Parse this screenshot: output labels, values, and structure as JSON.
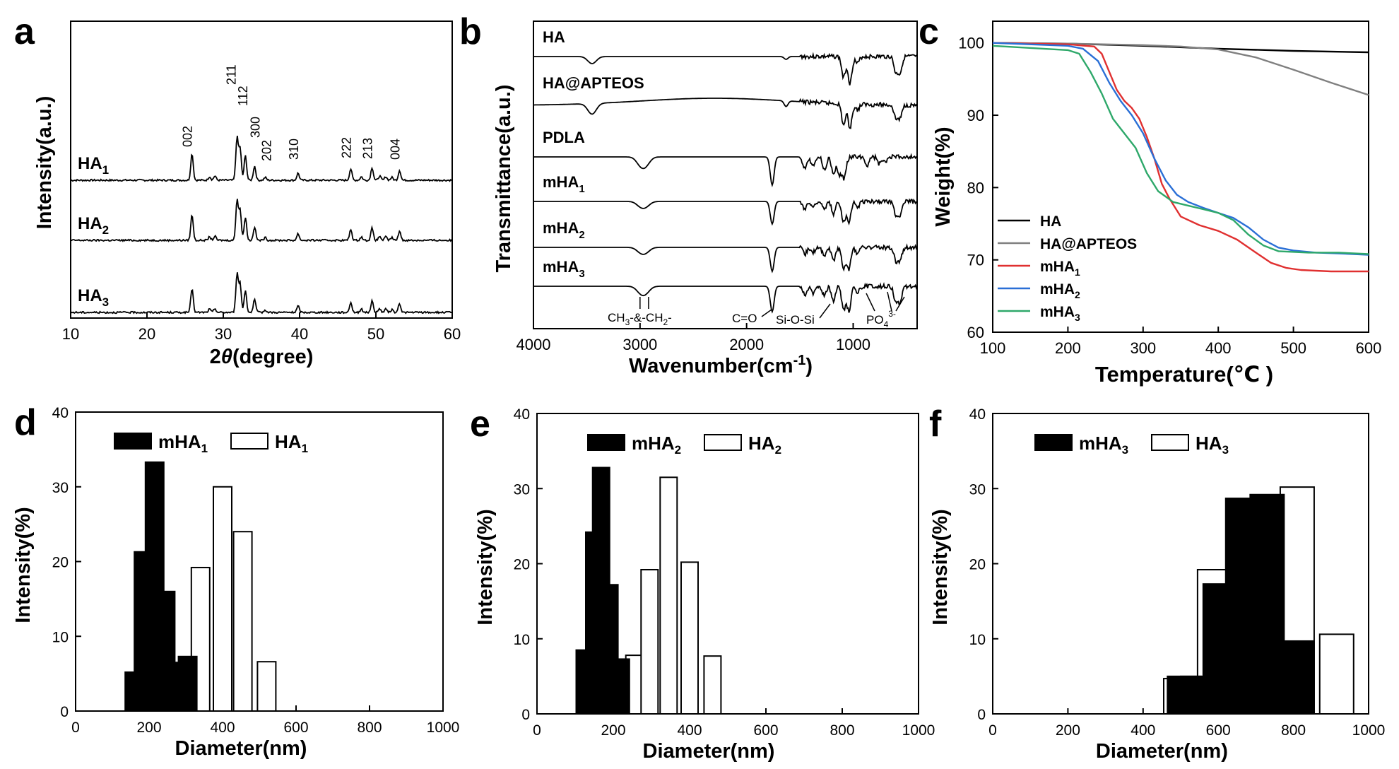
{
  "chart_data": [
    {
      "id": "a",
      "panel_label": "a",
      "type": "line",
      "title": "",
      "xlabel_prefix": "2",
      "xlabel_theta": "θ",
      "xlabel_suffix": "(degree)",
      "ylabel": "Intensity(a.u.)",
      "xlim": [
        10,
        60
      ],
      "xticks": [
        10,
        20,
        30,
        40,
        50,
        60
      ],
      "series": [
        {
          "name": "HA",
          "sub": "1"
        },
        {
          "name": "HA",
          "sub": "2"
        },
        {
          "name": "HA",
          "sub": "3"
        }
      ],
      "peaks": [
        {
          "label": "002",
          "x": 25.9
        },
        {
          "label": "211",
          "x": 31.8
        },
        {
          "label": "112",
          "x": 32.2
        },
        {
          "label": "300",
          "x": 32.9
        },
        {
          "label": "202",
          "x": 34.1
        },
        {
          "label": "310",
          "x": 39.8
        },
        {
          "label": "222",
          "x": 46.7
        },
        {
          "label": "213",
          "x": 49.5
        },
        {
          "label": "004",
          "x": 53.1
        }
      ]
    },
    {
      "id": "b",
      "panel_label": "b",
      "type": "line",
      "xlabel": "Wavenumber(cm",
      "xlabel_sup": "-1",
      "xlabel_end": ")",
      "ylabel": "Transmittance(a.u.)",
      "xlim": [
        4000,
        400
      ],
      "xticks": [
        4000,
        3000,
        2000,
        1000
      ],
      "series": [
        {
          "name": "HA",
          "sub": ""
        },
        {
          "name": "HA@APTEOS",
          "sub": ""
        },
        {
          "name": "PDLA",
          "sub": ""
        },
        {
          "name": "mHA",
          "sub": "1"
        },
        {
          "name": "mHA",
          "sub": "2"
        },
        {
          "name": "mHA",
          "sub": "3"
        }
      ],
      "annotations": [
        {
          "text": "CH",
          "sub1": "3",
          "mid": "-&-CH",
          "sub2": "2",
          "end": "-",
          "x": 2950
        },
        {
          "text": "C=O",
          "x": 1750
        },
        {
          "text": "Si-O-Si",
          "x": 1100
        },
        {
          "text": "PO",
          "sub": "4",
          "sup": "3-",
          "x": 600
        }
      ]
    },
    {
      "id": "c",
      "panel_label": "c",
      "type": "line",
      "xlabel": "Temperature(℃ )",
      "ylabel": "Weight(%)",
      "xlim": [
        100,
        600
      ],
      "ylim": [
        60,
        103
      ],
      "xticks": [
        100,
        200,
        300,
        400,
        500,
        600
      ],
      "yticks": [
        60,
        70,
        80,
        90,
        100
      ],
      "series": [
        {
          "name": "HA",
          "sub": "",
          "color": "#000000",
          "x": [
            100,
            200,
            300,
            400,
            500,
            600
          ],
          "y": [
            100,
            99.9,
            99.6,
            99.2,
            98.9,
            98.7
          ]
        },
        {
          "name": "HA@APTEOS",
          "sub": "",
          "color": "#808080",
          "x": [
            100,
            200,
            300,
            350,
            400,
            450,
            500,
            550,
            600
          ],
          "y": [
            100,
            99.9,
            99.7,
            99.5,
            99.1,
            98.0,
            96.3,
            94.5,
            92.8
          ]
        },
        {
          "name": "mHA",
          "sub": "1",
          "color": "#e03030",
          "x": [
            100,
            200,
            235,
            245,
            255,
            265,
            275,
            285,
            295,
            305,
            315,
            325,
            335,
            350,
            375,
            400,
            425,
            450,
            470,
            490,
            510,
            550,
            600
          ],
          "y": [
            100,
            99.8,
            99.5,
            98.5,
            96,
            93.5,
            92,
            91,
            89.5,
            87,
            84,
            80.5,
            78.5,
            76,
            74.8,
            74,
            72.8,
            71,
            69.6,
            68.9,
            68.6,
            68.4,
            68.4
          ]
        },
        {
          "name": "mHA",
          "sub": "2",
          "color": "#2a6fd6",
          "x": [
            100,
            200,
            220,
            240,
            255,
            270,
            285,
            300,
            315,
            330,
            345,
            360,
            380,
            400,
            420,
            440,
            460,
            480,
            500,
            530,
            560,
            600
          ],
          "y": [
            100,
            99.6,
            99.2,
            97.5,
            94.5,
            92,
            90,
            87.5,
            84,
            81,
            79,
            78,
            77.2,
            76.5,
            75.8,
            74.5,
            72.8,
            71.7,
            71.3,
            71,
            70.9,
            70.7
          ]
        },
        {
          "name": "mHA",
          "sub": "3",
          "color": "#2ea86a",
          "x": [
            100,
            200,
            215,
            230,
            245,
            260,
            275,
            290,
            305,
            320,
            340,
            360,
            380,
            400,
            420,
            440,
            460,
            480,
            520,
            560,
            600
          ],
          "y": [
            99.6,
            99,
            98.5,
            96,
            93,
            89.5,
            87.5,
            85.5,
            82,
            79.5,
            78,
            77.5,
            77,
            76.5,
            75.5,
            73.5,
            72,
            71.2,
            71,
            71,
            70.8
          ]
        }
      ]
    },
    {
      "id": "d",
      "panel_label": "d",
      "type": "bar",
      "xlabel": "Diameter(nm)",
      "ylabel": "Intensity(%)",
      "xlim": [
        0,
        1000
      ],
      "ylim": [
        0,
        40
      ],
      "xticks": [
        0,
        200,
        400,
        600,
        800,
        1000
      ],
      "yticks": [
        0,
        10,
        20,
        30,
        40
      ],
      "bar_width": 26,
      "series": [
        {
          "name": "mHA",
          "sub": "1",
          "fill": "#000000",
          "x": [
            160,
            185,
            215,
            245,
            275,
            305
          ],
          "values": [
            5.2,
            21.3,
            33.3,
            16.0,
            6.5,
            7.3
          ]
        },
        {
          "name": "HA",
          "sub": "1",
          "fill": "#ffffff",
          "x": [
            290,
            340,
            400,
            455,
            520
          ],
          "values": [
            5.0,
            19.2,
            30.0,
            24.0,
            6.6
          ]
        }
      ]
    },
    {
      "id": "e",
      "panel_label": "e",
      "type": "bar",
      "xlabel": "Diameter(nm)",
      "ylabel": "Intensity(%)",
      "xlim": [
        0,
        1000
      ],
      "ylim": [
        0,
        40
      ],
      "xticks": [
        0,
        200,
        400,
        600,
        800,
        1000
      ],
      "yticks": [
        0,
        10,
        20,
        30,
        40
      ],
      "bar_width": 24,
      "series": [
        {
          "name": "mHA",
          "sub": "2",
          "fill": "#000000",
          "x": [
            125,
            150,
            168,
            190,
            220
          ],
          "values": [
            8.5,
            24.2,
            32.8,
            17.2,
            7.3
          ]
        },
        {
          "name": "HA",
          "sub": "2",
          "fill": "#ffffff",
          "x": [
            255,
            295,
            345,
            400,
            460
          ],
          "values": [
            7.8,
            19.2,
            31.5,
            20.2,
            7.7
          ]
        }
      ]
    },
    {
      "id": "f",
      "panel_label": "f",
      "type": "bar",
      "xlabel": "Diameter(nm)",
      "ylabel": "Intensity(%)",
      "xlim": [
        0,
        1000
      ],
      "ylim": [
        0,
        40
      ],
      "xticks": [
        0,
        200,
        400,
        600,
        800,
        1000
      ],
      "yticks": [
        0,
        10,
        20,
        30,
        40
      ],
      "bar_width": 48,
      "series": [
        {
          "name": "mHA",
          "sub": "3",
          "fill": "#000000",
          "x": [
            510,
            545,
            605,
            665,
            730,
            810
          ],
          "values": [
            5.0,
            5.0,
            17.3,
            28.7,
            29.2,
            9.7
          ]
        },
        {
          "name": "HA",
          "sub": "3",
          "fill": "#ffffff",
          "x": [
            500,
            590,
            670,
            810,
            915
          ],
          "values": [
            4.7,
            19.2,
            24.7,
            30.2,
            10.6
          ]
        }
      ]
    }
  ]
}
